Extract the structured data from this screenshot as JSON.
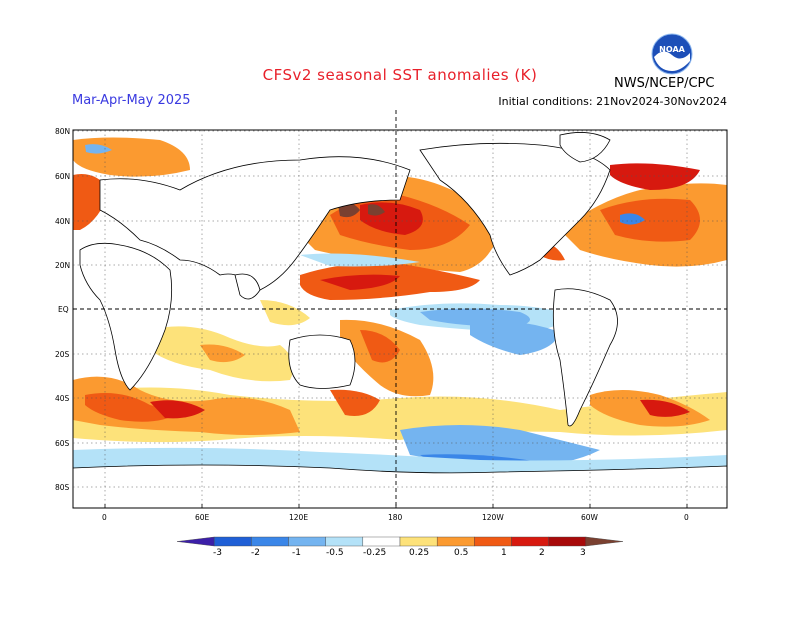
{
  "header": {
    "title": "CFSv2 seasonal SST anomalies (K)",
    "period": "Mar-Apr-May 2025",
    "initial_conditions": "Initial conditions: 21Nov2024-30Nov2024",
    "agency": "NWS/NCEP/CPC",
    "logo_text": "NOAA"
  },
  "axes": {
    "lat_labels": [
      "80N",
      "60N",
      "40N",
      "20N",
      "EQ",
      "20S",
      "40S",
      "60S",
      "80S"
    ],
    "lon_labels": [
      "0",
      "60E",
      "120E",
      "180",
      "120W",
      "60W",
      "0"
    ]
  },
  "colorbar": {
    "labels": [
      "-3",
      "-2",
      "-1",
      "-0.5",
      "-0.25",
      "0.25",
      "0.5",
      "1",
      "2",
      "3"
    ],
    "colors": [
      "#3c1fa8",
      "#1f5fd6",
      "#3a86e8",
      "#74b4f0",
      "#b4e2f8",
      "#ffffff",
      "#fde27a",
      "#fb9a30",
      "#f05a14",
      "#d7190f",
      "#a80a0a",
      "#7a4030"
    ]
  },
  "palette": {
    "land": "#ffffff",
    "coast": "#000000",
    "title": "#e8202a",
    "period": "#3a3ae0"
  }
}
